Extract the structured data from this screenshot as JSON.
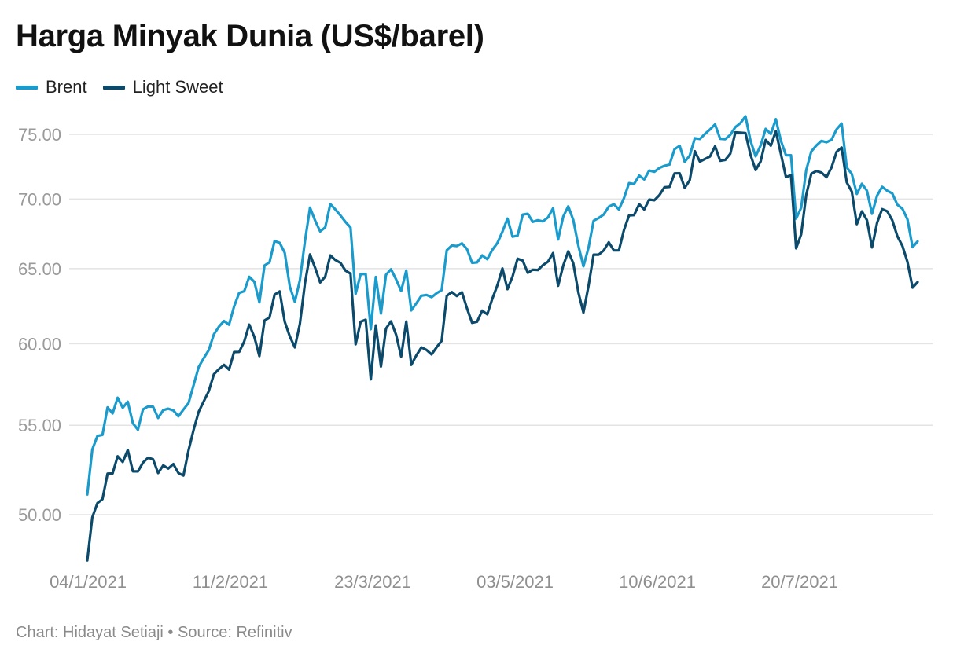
{
  "title": "Harga Minyak Dunia (US$/barel)",
  "footer": "Chart: Hidayat Setiaji • Source: Refinitiv",
  "chart_data": {
    "type": "line",
    "title": "Harga Minyak Dunia (US$/barel)",
    "xlabel": "",
    "ylabel": "",
    "ylim": [
      46.5,
      77.0
    ],
    "y_scale": "log",
    "grid": true,
    "legend_position": "top-left",
    "yticks": [
      "50.00",
      "55.00",
      "60.00",
      "65.00",
      "70.00",
      "75.00"
    ],
    "xticks": [
      "04/1/2021",
      "11/2/2021",
      "23/3/2021",
      "03/5/2021",
      "10/6/2021",
      "20/7/2021"
    ],
    "series": [
      {
        "name": "Brent",
        "color": "#1a9bcb",
        "values": [
          51.09,
          53.6,
          54.38,
          54.44,
          56.06,
          55.7,
          56.64,
          56.04,
          56.4,
          55.12,
          54.74,
          55.94,
          56.12,
          56.1,
          55.43,
          55.9,
          55.98,
          55.88,
          55.53,
          55.93,
          56.32,
          57.4,
          58.53,
          59.08,
          59.59,
          60.6,
          61.1,
          61.47,
          61.22,
          62.43,
          63.34,
          63.45,
          64.43,
          64.09,
          62.7,
          65.22,
          65.44,
          66.94,
          66.81,
          66.11,
          63.77,
          62.74,
          64.2,
          66.96,
          69.36,
          68.41,
          67.63,
          67.92,
          69.63,
          69.23,
          68.79,
          68.31,
          67.91,
          63.28,
          64.62,
          64.63,
          60.93,
          64.42,
          61.96,
          64.57,
          64.95,
          64.25,
          63.47,
          64.86,
          62.17,
          62.64,
          63.15,
          63.2,
          63.05,
          63.32,
          63.52,
          66.29,
          66.62,
          66.58,
          66.77,
          66.37,
          65.4,
          65.43,
          65.92,
          65.65,
          66.31,
          66.8,
          67.61,
          68.56,
          67.25,
          67.33,
          68.85,
          68.91,
          68.32,
          68.44,
          68.35,
          68.65,
          69.32,
          67.05,
          68.7,
          69.46,
          68.46,
          66.6,
          65.16,
          66.47,
          68.4,
          68.6,
          68.86,
          69.43,
          69.62,
          69.23,
          70.06,
          71.2,
          71.13,
          71.78,
          71.48,
          72.16,
          72.06,
          72.36,
          72.53,
          72.62,
          73.82,
          74.09,
          72.83,
          73.32,
          74.69,
          74.63,
          75.04,
          75.4,
          75.8,
          74.65,
          74.62,
          74.96,
          75.58,
          75.9,
          76.46,
          74.49,
          73.26,
          74.12,
          75.44,
          75.03,
          76.23,
          74.5,
          73.34,
          73.35,
          68.56,
          69.35,
          72.18,
          73.64,
          74.11,
          74.48,
          74.37,
          74.56,
          75.41,
          75.87,
          72.4,
          71.9,
          70.38,
          71.15,
          70.62,
          68.91,
          70.26,
          70.92,
          70.62,
          70.42,
          69.58,
          69.28,
          68.5,
          66.5,
          66.91
        ]
      },
      {
        "name": "Light Sweet",
        "color": "#0b4a6b",
        "values": [
          47.62,
          49.86,
          50.62,
          50.83,
          52.24,
          52.25,
          53.21,
          52.89,
          53.57,
          52.36,
          52.36,
          52.85,
          53.13,
          53.04,
          52.27,
          52.7,
          52.52,
          52.77,
          52.27,
          52.13,
          53.55,
          54.73,
          55.8,
          56.42,
          57.04,
          58.07,
          58.39,
          58.66,
          58.36,
          59.47,
          59.48,
          60.14,
          61.23,
          60.43,
          59.21,
          61.5,
          61.7,
          63.22,
          63.44,
          61.42,
          60.46,
          59.76,
          61.28,
          64.01,
          65.99,
          65.05,
          64.05,
          64.44,
          65.92,
          65.6,
          65.4,
          64.86,
          64.65,
          59.96,
          61.42,
          61.55,
          57.76,
          61.18,
          58.56,
          60.97,
          61.45,
          60.57,
          59.18,
          61.43,
          58.66,
          59.26,
          59.76,
          59.6,
          59.32,
          59.77,
          60.18,
          63.14,
          63.4,
          63.13,
          63.38,
          62.31,
          61.35,
          61.42,
          62.15,
          61.91,
          62.94,
          63.86,
          65.01,
          63.59,
          64.46,
          65.69,
          65.56,
          64.71,
          64.92,
          64.9,
          65.24,
          65.49,
          66.09,
          63.82,
          65.21,
          66.21,
          65.37,
          63.36,
          62.02,
          63.82,
          65.97,
          65.97,
          66.27,
          66.85,
          66.27,
          66.27,
          67.72,
          68.79,
          68.81,
          69.62,
          69.23,
          69.96,
          69.91,
          70.29,
          70.88,
          70.91,
          71.94,
          71.95,
          70.84,
          71.42,
          73.66,
          72.85,
          73.06,
          73.25,
          74.05,
          72.91,
          72.98,
          73.47,
          75.16,
          75.13,
          75.1,
          73.38,
          72.2,
          72.87,
          74.56,
          74.1,
          75.25,
          73.47,
          71.65,
          71.81,
          66.42,
          67.42,
          70.3,
          71.91,
          72.12,
          72.01,
          71.65,
          72.39,
          73.62,
          73.95,
          71.26,
          70.56,
          68.15,
          69.09,
          68.44,
          66.48,
          68.26,
          69.25,
          69.09,
          68.44,
          67.29,
          66.59,
          65.46,
          63.69,
          64.07
        ]
      }
    ]
  }
}
